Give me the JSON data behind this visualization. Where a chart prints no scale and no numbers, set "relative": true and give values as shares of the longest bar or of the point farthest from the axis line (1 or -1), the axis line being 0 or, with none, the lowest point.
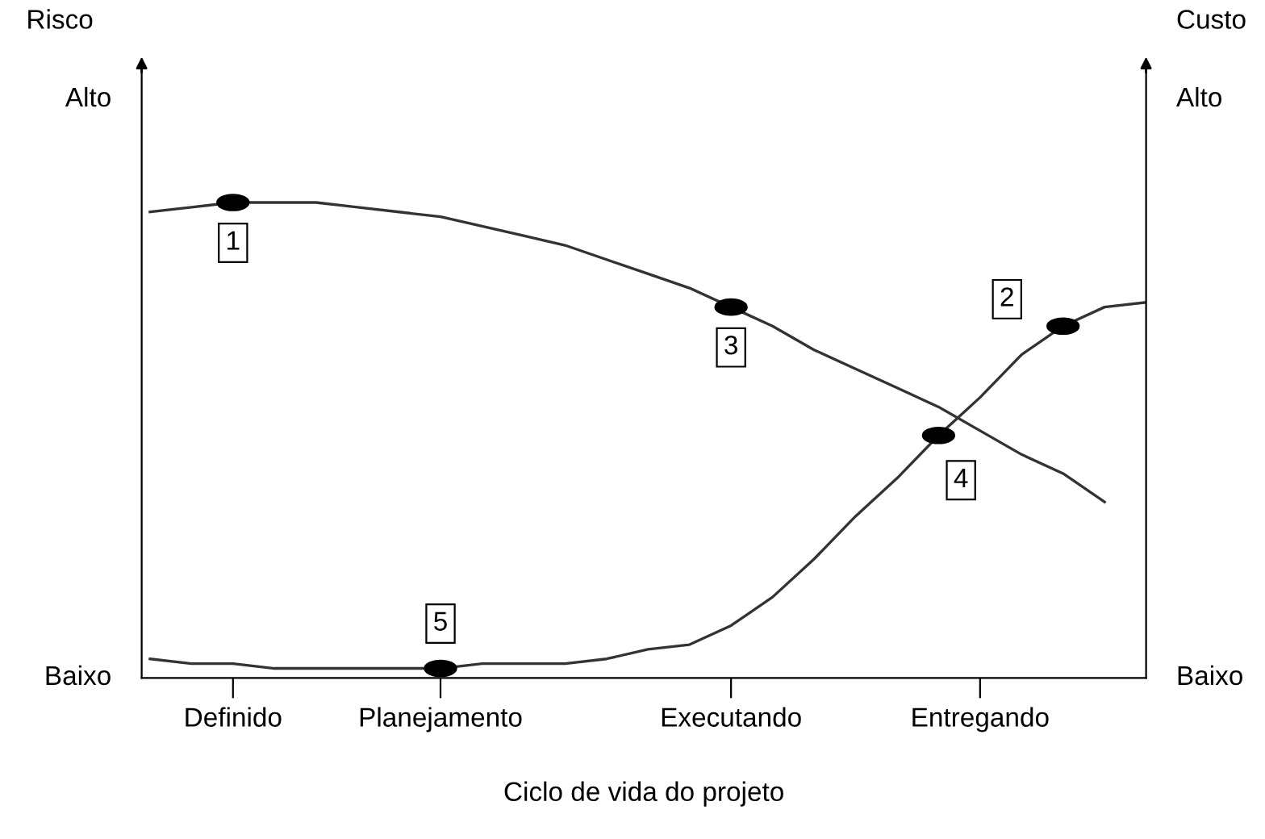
{
  "chart_data": {
    "type": "line",
    "relative": true,
    "xlabel": "Ciclo de vida do projeto",
    "categories": [
      null,
      null,
      "Definido",
      null,
      null,
      null,
      null,
      "Planejamento",
      null,
      null,
      null,
      null,
      null,
      null,
      "Executando",
      null,
      null,
      null,
      null,
      null,
      "Entregando",
      null,
      null,
      null,
      null
    ],
    "series": [
      {
        "color": "#333333",
        "values": [
          0.98,
          0.99,
          1,
          1,
          1,
          0.99,
          0.98,
          0.97,
          0.95,
          0.93,
          0.91,
          0.88,
          0.85,
          0.82,
          0.78,
          0.74,
          0.69,
          0.65,
          0.61,
          0.57,
          0.52,
          0.47,
          0.43,
          0.37,
          null
        ]
      },
      {
        "color": "#333333",
        "values": [
          0.04,
          0.03,
          0.03,
          0.02,
          0.02,
          0.02,
          0.02,
          0.02,
          0.03,
          0.03,
          0.03,
          0.04,
          0.06,
          0.07,
          0.11,
          0.17,
          0.25,
          0.34,
          0.42,
          0.51,
          0.59,
          0.68,
          0.74,
          0.78,
          0.79
        ]
      }
    ],
    "annotations": [
      "Risco",
      "Custo",
      "Alto",
      "Baixo",
      "Alto",
      "Baixo",
      "1",
      "2",
      "3",
      "4",
      "5"
    ],
    "grid": false,
    "legend": false,
    "line_style": "solid",
    "marker": "none"
  }
}
